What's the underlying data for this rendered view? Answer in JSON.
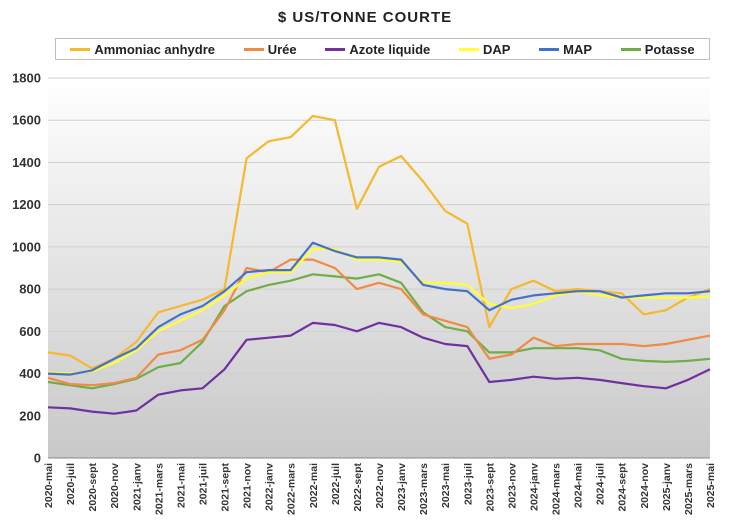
{
  "chart_data": {
    "type": "line",
    "title": "$ US/TONNE COURTE",
    "ylim": [
      0,
      1800
    ],
    "yticks": [
      0,
      200,
      400,
      600,
      800,
      1000,
      1200,
      1400,
      1600,
      1800
    ],
    "grid": true,
    "legend_position": "top",
    "xticklabels": [
      "2020-mai",
      "2020-juil",
      "2020-sept",
      "2020-nov",
      "2021-janv",
      "2021-mars",
      "2021-mai",
      "2021-juil",
      "2021-sept",
      "2021-nov",
      "2022-janv",
      "2022-mars",
      "2022-mai",
      "2022-juil",
      "2022-sept",
      "2022-nov",
      "2023-janv",
      "2023-mars",
      "2023-mai",
      "2023-juil",
      "2023-sept",
      "2023-nov",
      "2024-janv",
      "2024-mars",
      "2024-mai",
      "2024-juil",
      "2024-sept",
      "2024-nov",
      "2025-janv",
      "2025-mars",
      "2025-mai"
    ],
    "series": [
      {
        "name": "Ammoniac anhydre",
        "color": "#F5B82E",
        "values": [
          500,
          485,
          425,
          470,
          550,
          690,
          720,
          750,
          800,
          1420,
          1500,
          1520,
          1620,
          1600,
          1180,
          1380,
          1430,
          1310,
          1170,
          1110,
          620,
          800,
          840,
          790,
          800,
          790,
          780,
          680,
          700,
          760,
          800
        ]
      },
      {
        "name": "Urée",
        "color": "#F08A45",
        "values": [
          380,
          350,
          345,
          355,
          380,
          490,
          510,
          560,
          700,
          900,
          880,
          940,
          940,
          900,
          800,
          830,
          800,
          680,
          650,
          620,
          470,
          490,
          570,
          530,
          540,
          540,
          540,
          530,
          540,
          560,
          580
        ]
      },
      {
        "name": "Azote liquide",
        "color": "#7030A0",
        "values": [
          240,
          235,
          220,
          210,
          225,
          300,
          320,
          330,
          420,
          560,
          570,
          580,
          640,
          630,
          600,
          640,
          620,
          570,
          540,
          530,
          360,
          370,
          385,
          375,
          380,
          370,
          355,
          340,
          330,
          370,
          420
        ]
      },
      {
        "name": "DAP",
        "color": "#FFFF33",
        "values": [
          405,
          400,
          410,
          450,
          510,
          600,
          650,
          700,
          770,
          850,
          880,
          880,
          990,
          990,
          940,
          940,
          930,
          830,
          830,
          820,
          730,
          710,
          730,
          770,
          790,
          770,
          760,
          760,
          760,
          760,
          765
        ]
      },
      {
        "name": "MAP",
        "color": "#4472C4",
        "values": [
          400,
          395,
          415,
          470,
          520,
          620,
          680,
          720,
          790,
          880,
          890,
          890,
          1020,
          980,
          950,
          950,
          940,
          820,
          800,
          790,
          700,
          750,
          770,
          780,
          790,
          790,
          760,
          770,
          780,
          780,
          790
        ]
      },
      {
        "name": "Potasse",
        "color": "#70AD47",
        "values": [
          360,
          345,
          330,
          350,
          375,
          430,
          450,
          550,
          720,
          790,
          820,
          840,
          870,
          860,
          850,
          870,
          830,
          690,
          620,
          600,
          500,
          500,
          520,
          520,
          520,
          510,
          470,
          460,
          455,
          460,
          470
        ]
      }
    ]
  }
}
